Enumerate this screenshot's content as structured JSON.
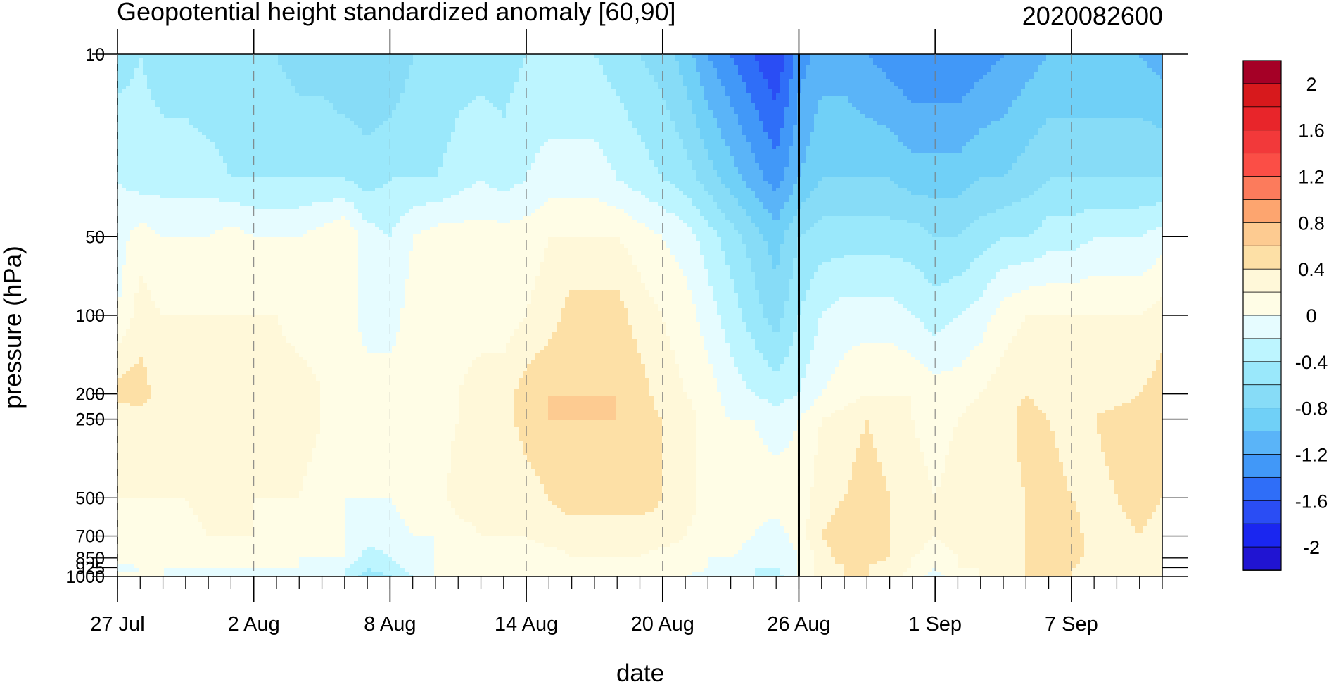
{
  "chart_data": {
    "type": "heatmap",
    "title": "Geopotential height standardized anomaly [60,90]",
    "date_label": "2020082600",
    "xlabel": "date",
    "ylabel": "pressure (hPa)",
    "x_ticks": [
      "27 Jul",
      "2 Aug",
      "8 Aug",
      "14 Aug",
      "20 Aug",
      "26 Aug",
      "1 Sep",
      "7 Sep"
    ],
    "x_range": [
      "27 Jul",
      "11 Sep"
    ],
    "y_scale": "log",
    "y_reversed": true,
    "y_ticks": [
      10,
      50,
      100,
      200,
      250,
      500,
      700,
      850,
      925,
      1000
    ],
    "y_range": [
      10,
      1000
    ],
    "current_date_marker": "26 Aug",
    "contour_levels": [
      -2.2,
      -2,
      -1.8,
      -1.6,
      -1.4,
      -1.2,
      -1,
      -0.8,
      -0.6,
      -0.4,
      -0.2,
      0,
      0.2,
      0.4,
      0.6,
      0.8,
      1,
      1.2,
      1.4,
      1.6,
      1.8,
      2,
      2.2
    ],
    "colorbar_labels": [
      "2",
      "1.6",
      "1.2",
      "0.8",
      "0.4",
      "0",
      "-0.4",
      "-0.8",
      "-1.2",
      "-1.6",
      "-2"
    ],
    "colorbar_colors": [
      "#a50026",
      "#d7191c",
      "#e8252a",
      "#f2393a",
      "#fb4e46",
      "#fc7b5c",
      "#fda56f",
      "#fdcb91",
      "#fde0a6",
      "#fff8d9",
      "#fffde6",
      "#e6fcff",
      "#bdf5ff",
      "#9ae8fb",
      "#87dcf7",
      "#70d0f7",
      "#5ab4f8",
      "#4198f8",
      "#2f6ef8",
      "#2a4df4",
      "#1a26f0",
      "#2014d2"
    ],
    "days": [
      "27 Jul",
      "28 Jul",
      "29 Jul",
      "30 Jul",
      "31 Jul",
      "1 Aug",
      "2 Aug",
      "3 Aug",
      "4 Aug",
      "5 Aug",
      "6 Aug",
      "7 Aug",
      "8 Aug",
      "9 Aug",
      "10 Aug",
      "11 Aug",
      "12 Aug",
      "13 Aug",
      "14 Aug",
      "15 Aug",
      "16 Aug",
      "17 Aug",
      "18 Aug",
      "19 Aug",
      "20 Aug",
      "21 Aug",
      "22 Aug",
      "23 Aug",
      "24 Aug",
      "25 Aug",
      "26 Aug",
      "27 Aug",
      "28 Aug",
      "29 Aug",
      "30 Aug",
      "31 Aug",
      "1 Sep",
      "2 Sep",
      "3 Sep",
      "4 Sep",
      "5 Sep",
      "6 Sep",
      "7 Sep",
      "8 Sep",
      "9 Sep",
      "10 Sep",
      "11 Sep"
    ],
    "levels_hPa": [
      10,
      30,
      50,
      100,
      200,
      250,
      500,
      700,
      850,
      925,
      1000
    ],
    "values": [
      [
        -0.5,
        -0.2,
        -0.1,
        0,
        0.5,
        0.2,
        0.2,
        0.2,
        0.1,
        -0.1,
        0.1
      ],
      [
        -0.4,
        -0.3,
        0.1,
        0.3,
        0.5,
        0.3,
        0.2,
        0.1,
        0.1,
        0,
        0
      ],
      [
        -0.5,
        -0.3,
        0,
        0.2,
        0.3,
        0.3,
        0.2,
        0.1,
        0.1,
        0,
        0
      ],
      [
        -0.5,
        -0.3,
        0,
        0.2,
        0.3,
        0.3,
        0.2,
        0.1,
        0.1,
        0,
        -0.1
      ],
      [
        -0.6,
        -0.3,
        0,
        0.2,
        0.3,
        0.3,
        0.3,
        0.2,
        0.1,
        0,
        -0.1
      ],
      [
        -0.6,
        -0.4,
        0.1,
        0.2,
        0.3,
        0.3,
        0.3,
        0.2,
        0.1,
        0,
        -0.1
      ],
      [
        -0.6,
        -0.4,
        0,
        0.2,
        0.3,
        0.3,
        0.2,
        0.2,
        0.1,
        0,
        -0.2
      ],
      [
        -0.6,
        -0.4,
        0,
        0.2,
        0.3,
        0.3,
        0.2,
        0.1,
        0,
        0,
        -0.1
      ],
      [
        -0.7,
        -0.4,
        0,
        0.1,
        0.3,
        0.3,
        0.2,
        0.1,
        0,
        0,
        -0.1
      ],
      [
        -0.7,
        -0.4,
        0.1,
        0.1,
        0.2,
        0.2,
        0.1,
        0.1,
        0,
        -0.1,
        -0.1
      ],
      [
        -0.8,
        -0.4,
        0.2,
        0.1,
        0.2,
        0.1,
        0,
        0,
        0,
        -0.2,
        -0.2
      ],
      [
        -0.8,
        -0.5,
        -0.1,
        -0.1,
        0.1,
        0.1,
        0,
        -0.1,
        -0.3,
        -0.4,
        -0.5
      ],
      [
        -0.8,
        -0.4,
        -0.2,
        -0.1,
        0.1,
        0.1,
        0,
        -0.1,
        -0.2,
        -0.3,
        -0.4
      ],
      [
        -0.6,
        -0.4,
        0,
        0.1,
        0.1,
        0.1,
        0.1,
        0,
        -0.1,
        -0.1,
        -0.2
      ],
      [
        -0.6,
        -0.4,
        0.1,
        0.1,
        0.1,
        0.1,
        0.1,
        0,
        0,
        0,
        0
      ],
      [
        -0.5,
        -0.3,
        0.1,
        0.1,
        0.2,
        0.2,
        0.3,
        0.1,
        0.1,
        0,
        0
      ],
      [
        -0.5,
        -0.2,
        0.1,
        0.1,
        0.3,
        0.3,
        0.3,
        0.2,
        0.1,
        0,
        0
      ],
      [
        -0.5,
        -0.3,
        0.1,
        0.1,
        0.3,
        0.3,
        0.2,
        0.2,
        0.1,
        0,
        0
      ],
      [
        -0.4,
        -0.2,
        0.1,
        0.2,
        0.5,
        0.5,
        0.3,
        0.2,
        0.1,
        0,
        0
      ],
      [
        -0.4,
        -0.1,
        0.2,
        0.3,
        0.6,
        0.6,
        0.4,
        0.3,
        0.1,
        0.1,
        0.1
      ],
      [
        -0.4,
        -0.1,
        0.2,
        0.5,
        0.6,
        0.6,
        0.5,
        0.3,
        0.2,
        0.1,
        0.1
      ],
      [
        -0.4,
        -0.1,
        0.2,
        0.5,
        0.6,
        0.6,
        0.5,
        0.3,
        0.2,
        0.1,
        0.1
      ],
      [
        -0.5,
        -0.2,
        0.2,
        0.5,
        0.6,
        0.6,
        0.5,
        0.3,
        0.2,
        0.1,
        0.1
      ],
      [
        -0.6,
        -0.3,
        0.1,
        0.3,
        0.5,
        0.5,
        0.5,
        0.3,
        0.2,
        0.1,
        0.1
      ],
      [
        -0.7,
        -0.4,
        0,
        0.2,
        0.3,
        0.4,
        0.4,
        0.3,
        0.1,
        0.1,
        0
      ],
      [
        -0.9,
        -0.5,
        -0.1,
        0.1,
        0.2,
        0.3,
        0.3,
        0.2,
        0.1,
        0.1,
        0
      ],
      [
        -1.2,
        -0.7,
        -0.3,
        -0.1,
        0.1,
        0.1,
        0.1,
        0.1,
        0,
        0,
        -0.1
      ],
      [
        -1.4,
        -0.9,
        -0.5,
        -0.3,
        -0.1,
        0,
        0.1,
        0.1,
        0,
        -0.1,
        -0.1
      ],
      [
        -1.6,
        -1.1,
        -0.7,
        -0.5,
        -0.2,
        0,
        0.1,
        0,
        -0.1,
        -0.2,
        -0.2
      ],
      [
        -1.8,
        -1.3,
        -0.9,
        -0.7,
        -0.3,
        -0.1,
        0.1,
        -0.1,
        -0.2,
        -0.2,
        -0.3
      ],
      [
        -1.3,
        -1,
        -0.6,
        -0.4,
        -0.2,
        0,
        0.1,
        0.1,
        0,
        0,
        0
      ],
      [
        -1.1,
        -0.8,
        -0.5,
        -0.2,
        0,
        0.2,
        0.3,
        0.4,
        0.3,
        0.3,
        0.3
      ],
      [
        -1.1,
        -0.8,
        -0.5,
        -0.1,
        0.1,
        0.3,
        0.4,
        0.5,
        0.5,
        0.4,
        0.4
      ],
      [
        -1.2,
        -0.8,
        -0.5,
        -0.1,
        0.2,
        0.4,
        0.5,
        0.5,
        0.5,
        0.4,
        0.4
      ],
      [
        -1.3,
        -0.8,
        -0.5,
        -0.1,
        0.2,
        0.3,
        0.4,
        0.4,
        0.4,
        0.3,
        0.3
      ],
      [
        -1.4,
        -0.9,
        -0.5,
        -0.2,
        0.2,
        0.2,
        0.3,
        0.3,
        0.2,
        0.2,
        0.1
      ],
      [
        -1.4,
        -0.9,
        -0.6,
        -0.3,
        0.1,
        0.1,
        0.2,
        0.2,
        0.1,
        0,
        -0.1
      ],
      [
        -1.4,
        -0.9,
        -0.6,
        -0.2,
        0.1,
        0.2,
        0.3,
        0.3,
        0.2,
        0.2,
        0.1
      ],
      [
        -1.3,
        -0.8,
        -0.5,
        -0.1,
        0.2,
        0.3,
        0.3,
        0.3,
        0.3,
        0.2,
        0.2
      ],
      [
        -1.2,
        -0.8,
        -0.4,
        0.1,
        0.3,
        0.3,
        0.3,
        0.3,
        0.3,
        0.3,
        0.3
      ],
      [
        -1.1,
        -0.7,
        -0.4,
        0.2,
        0.4,
        0.5,
        0.4,
        0.4,
        0.4,
        0.4,
        0.4
      ],
      [
        -1,
        -0.6,
        -0.3,
        0.2,
        0.3,
        0.4,
        0.5,
        0.5,
        0.5,
        0.4,
        0.4
      ],
      [
        -1,
        -0.6,
        -0.3,
        0.2,
        0.3,
        0.3,
        0.4,
        0.5,
        0.5,
        0.4,
        0.4
      ],
      [
        -1,
        -0.6,
        -0.2,
        0.2,
        0.3,
        0.4,
        0.3,
        0.3,
        0.3,
        0.3,
        0.3
      ],
      [
        -1,
        -0.6,
        -0.2,
        0.2,
        0.3,
        0.5,
        0.4,
        0.3,
        0.3,
        0.3,
        0.3
      ],
      [
        -1,
        -0.6,
        -0.2,
        0.2,
        0.4,
        0.5,
        0.5,
        0.4,
        0.3,
        0.3,
        0.3
      ],
      [
        -1.1,
        -0.6,
        -0.1,
        0.3,
        0.5,
        0.5,
        0.4,
        0.3,
        0.3,
        0.3,
        0.3
      ]
    ]
  }
}
